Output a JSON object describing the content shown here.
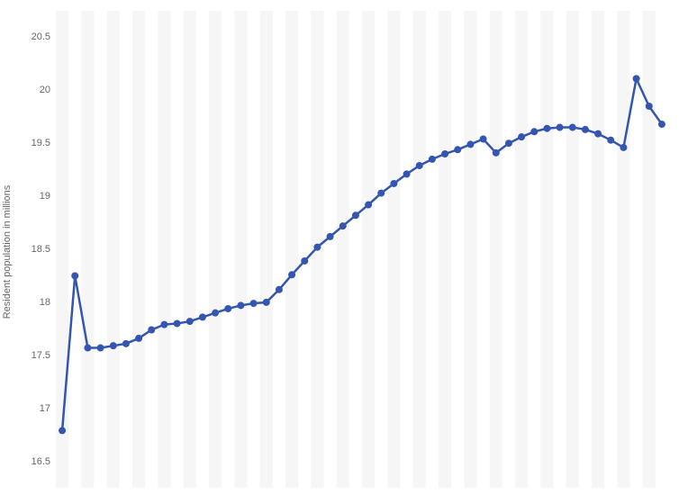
{
  "chart": {
    "type": "line",
    "ylabel": "Resident population in millions",
    "label_fontsize": 11,
    "label_color": "#666666",
    "background_color": "#ffffff",
    "stripe_color": "#f6f6f6",
    "ylim": [
      16.25,
      20.75
    ],
    "yticks": [
      16.5,
      17,
      17.5,
      18,
      18.5,
      19,
      19.5,
      20,
      20.5
    ],
    "series": {
      "color": "#3456b0",
      "line_width": 2.5,
      "marker": "circle",
      "marker_size": 4,
      "values": [
        16.79,
        18.25,
        17.57,
        17.57,
        17.59,
        17.61,
        17.66,
        17.74,
        17.79,
        17.8,
        17.82,
        17.86,
        17.9,
        17.94,
        17.97,
        17.99,
        18.0,
        18.12,
        18.26,
        18.39,
        18.52,
        18.62,
        18.72,
        18.82,
        18.92,
        19.03,
        19.12,
        19.21,
        19.29,
        19.35,
        19.4,
        19.44,
        19.49,
        19.54,
        19.41,
        19.5,
        19.56,
        19.61,
        19.64,
        19.65,
        19.65,
        19.63,
        19.59,
        19.53,
        19.46,
        20.11,
        19.85,
        19.68
      ]
    },
    "n_points": 48
  }
}
